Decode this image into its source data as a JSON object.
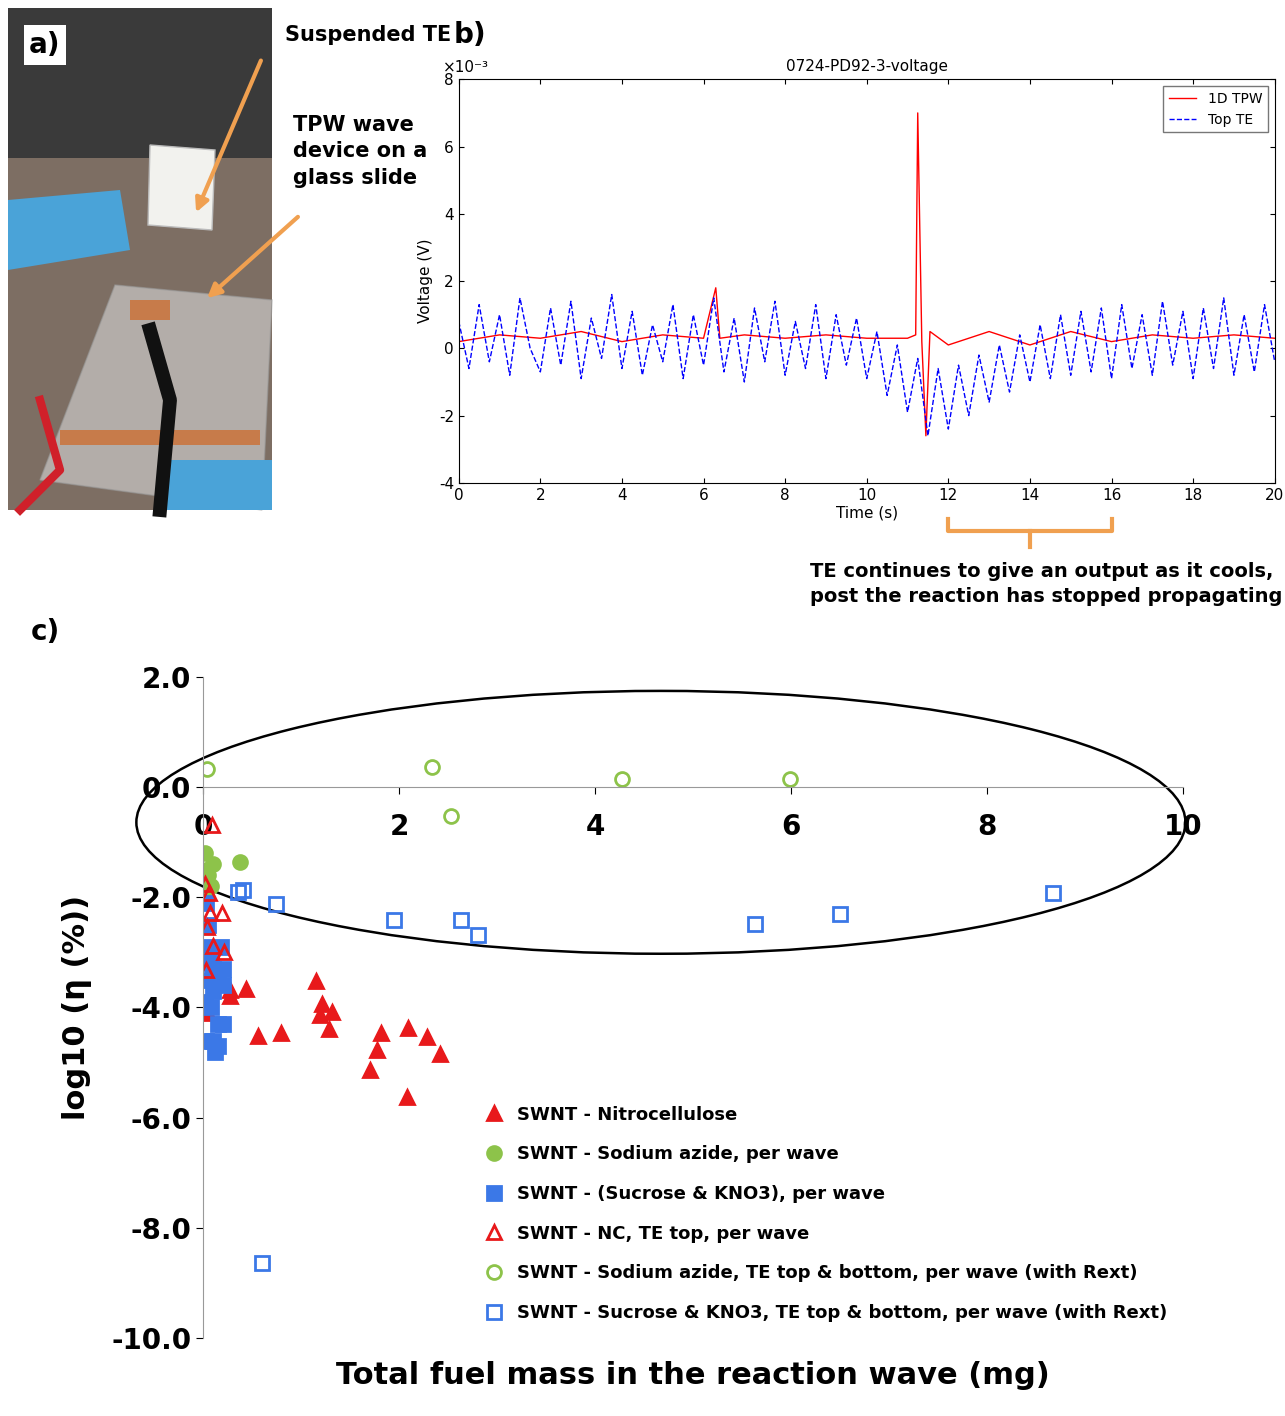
{
  "panel_labels": [
    "a)",
    "b)",
    "c)"
  ],
  "photo": {
    "annotations": [
      "Suspended TE",
      "TPW wave device on a glass slide"
    ]
  },
  "chart_data": [
    {
      "type": "line",
      "title": "0724-PD92-3-voltage",
      "xlabel": "Time (s)",
      "ylabel": "Voltage (V)",
      "y_offset_text": "×10⁻³",
      "xlim": [
        0,
        20
      ],
      "xticks": [
        0,
        2,
        4,
        6,
        8,
        10,
        12,
        14,
        16,
        18,
        20
      ],
      "ylim": [
        -4,
        8
      ],
      "yticks": [
        -4,
        -2,
        0,
        2,
        4,
        6,
        8
      ],
      "grid": false,
      "legend": "upper right",
      "series": [
        {
          "name": "1D TPW",
          "color": "#ff0000",
          "line_style": "solid",
          "x": [
            0,
            1,
            2,
            3,
            4,
            5,
            6,
            6.3,
            6.4,
            7,
            8,
            9,
            10,
            11,
            11.2,
            11.25,
            11.35,
            11.45,
            11.55,
            12,
            13,
            14,
            15,
            16,
            17,
            18,
            19,
            20
          ],
          "values": [
            0.2,
            0.4,
            0.3,
            0.5,
            0.2,
            0.4,
            0.3,
            1.8,
            0.3,
            0.4,
            0.3,
            0.4,
            0.3,
            0.3,
            0.4,
            7.0,
            0.2,
            -2.6,
            0.5,
            0.1,
            0.5,
            0.1,
            0.5,
            0.2,
            0.4,
            0.3,
            0.4,
            0.3
          ]
        },
        {
          "name": "Top TE",
          "color": "#0000ff",
          "line_style": "dashed",
          "x": [
            0,
            0.25,
            0.5,
            0.75,
            1,
            1.25,
            1.5,
            1.75,
            2,
            2.25,
            2.5,
            2.75,
            3,
            3.25,
            3.5,
            3.75,
            4,
            4.25,
            4.5,
            4.75,
            5,
            5.25,
            5.5,
            5.75,
            6,
            6.25,
            6.5,
            6.75,
            7,
            7.25,
            7.5,
            7.75,
            8,
            8.25,
            8.5,
            8.75,
            9,
            9.25,
            9.5,
            9.75,
            10,
            10.25,
            10.5,
            10.75,
            11,
            11.25,
            11.5,
            11.75,
            12,
            12.25,
            12.5,
            12.75,
            13,
            13.25,
            13.5,
            13.75,
            14,
            14.25,
            14.5,
            14.75,
            15,
            15.25,
            15.5,
            15.75,
            16,
            16.25,
            16.5,
            16.75,
            17,
            17.25,
            17.5,
            17.75,
            18,
            18.25,
            18.5,
            18.75,
            19,
            19.25,
            19.5,
            19.75,
            20
          ],
          "values": [
            0.8,
            -0.6,
            1.3,
            -0.4,
            1.0,
            -0.8,
            1.5,
            0.0,
            -0.7,
            1.2,
            -0.5,
            1.4,
            -0.9,
            0.9,
            -0.3,
            1.6,
            -0.6,
            1.1,
            -0.8,
            0.7,
            -0.4,
            1.3,
            -0.9,
            1.0,
            -0.5,
            1.5,
            -0.7,
            0.9,
            -1.0,
            1.2,
            -0.4,
            1.4,
            -0.8,
            0.8,
            -0.6,
            1.3,
            -0.9,
            1.0,
            -0.5,
            0.9,
            -0.9,
            0.5,
            -1.4,
            0.1,
            -1.9,
            -0.3,
            -2.6,
            -0.6,
            -2.4,
            -0.5,
            -2.0,
            -0.2,
            -1.6,
            0.1,
            -1.3,
            0.4,
            -1.0,
            0.7,
            -0.9,
            1.0,
            -0.8,
            1.1,
            -0.7,
            1.2,
            -0.9,
            1.3,
            -0.6,
            1.0,
            -0.8,
            1.4,
            -0.5,
            1.1,
            -0.9,
            1.2,
            -0.6,
            1.5,
            -0.8,
            1.0,
            -0.7,
            1.3,
            -0.4
          ]
        }
      ],
      "annotations": [
        {
          "text": "TE continues to give an output as it cools, post the reaction has stopped propagating",
          "x": [
            12,
            16
          ]
        }
      ]
    },
    {
      "type": "scatter",
      "xlabel": "Total fuel mass in the reaction wave (mg)",
      "ylabel": "log10 (η (%))",
      "xlim": [
        0,
        10
      ],
      "xticks": [
        0,
        2,
        4,
        6,
        8,
        10
      ],
      "ylim": [
        -10.0,
        2.0
      ],
      "yticks": [
        -10.0,
        -8.0,
        -6.0,
        -4.0,
        -2.0,
        0.0,
        2.0
      ],
      "grid": false,
      "legend": "lower right",
      "series": [
        {
          "name": "SWNT - Nitrocellulose",
          "color": "#e8191b",
          "marker": "triangle",
          "x": [
            0.27,
            0.44,
            0.56,
            0.8,
            1.15,
            1.19,
            1.32,
            1.28,
            1.7,
            1.77,
            1.82,
            2.09,
            2.08,
            2.28,
            2.42,
            1.21,
            0.28,
            0.05
          ],
          "values": [
            -3.68,
            -3.66,
            -4.51,
            -4.46,
            -3.52,
            -4.13,
            -4.09,
            -4.39,
            -5.13,
            -4.77,
            -4.47,
            -4.37,
            -5.63,
            -4.54,
            -4.85,
            -3.94,
            -3.8,
            -4.1
          ]
        },
        {
          "name": "SWNT - Sodium azide, per wave",
          "color": "#8dc34a",
          "marker": "circle",
          "x": [
            0.02,
            0.03,
            0.05,
            0.08,
            0.03,
            0.1,
            0.38
          ],
          "values": [
            -1.2,
            -1.5,
            -1.6,
            -1.8,
            -2.0,
            -1.4,
            -1.36
          ]
        },
        {
          "name": "SWNT - (Sucrose & KNO3), per wave",
          "color": "#3b78e7",
          "marker": "square",
          "x": [
            0.03,
            0.05,
            0.02,
            0.08,
            0.1,
            0.15,
            0.2,
            0.05,
            0.1,
            0.2,
            0.02,
            0.08,
            0.15,
            0.2,
            0.03,
            0.1,
            0.15,
            0.12,
            0.06,
            0.18
          ],
          "values": [
            -2.1,
            -2.5,
            -2.9,
            -3.0,
            -3.3,
            -3.4,
            -3.3,
            -3.5,
            -3.7,
            -3.6,
            -3.9,
            -4.0,
            -4.3,
            -4.3,
            -4.6,
            -4.6,
            -4.7,
            -4.8,
            -3.2,
            -2.9
          ]
        },
        {
          "name": "SWNT - NC, TE top, per wave",
          "color": "#e8191b",
          "marker": "open_triangle",
          "x": [
            0.09,
            0.02,
            0.07,
            0.04,
            0.1,
            0.21,
            0.19,
            0.03,
            0.06
          ],
          "values": [
            -0.69,
            -1.76,
            -2.28,
            -2.54,
            -2.88,
            -3.0,
            -2.28,
            -3.32,
            -1.93
          ]
        },
        {
          "name": "SWNT - Sodium azide, TE top & bottom, per wave (with Rext)",
          "color": "#8dc34a",
          "marker": "open_circle",
          "x": [
            0.04,
            2.34,
            2.53,
            4.27,
            5.99
          ],
          "values": [
            0.33,
            0.37,
            -0.52,
            0.15,
            0.14
          ]
        },
        {
          "name": "SWNT - Sucrose & KNO3, TE top & bottom, per wave (with Rext)",
          "color": "#3b78e7",
          "marker": "open_square",
          "x": [
            0.36,
            0.41,
            0.74,
            1.95,
            2.63,
            2.8,
            5.63,
            6.5,
            8.67,
            0.6
          ],
          "values": [
            -1.9,
            -1.87,
            -2.12,
            -2.42,
            -2.42,
            -2.68,
            -2.49,
            -2.3,
            -1.92,
            -8.64
          ]
        }
      ]
    }
  ]
}
